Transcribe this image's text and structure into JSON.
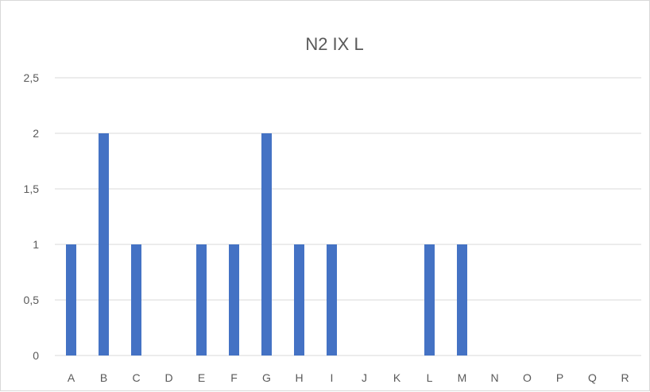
{
  "chart_data": {
    "type": "bar",
    "title": "N2 IX L",
    "xlabel": "",
    "ylabel": "",
    "categories": [
      "A",
      "B",
      "C",
      "D",
      "E",
      "F",
      "G",
      "H",
      "I",
      "J",
      "K",
      "L",
      "M",
      "N",
      "O",
      "P",
      "Q",
      "R"
    ],
    "values": [
      1,
      2,
      1,
      0,
      1,
      1,
      2,
      1,
      1,
      0,
      0,
      1,
      1,
      0,
      0,
      0,
      0,
      0
    ],
    "ylim": [
      0,
      2.5
    ],
    "yticks": [
      "0",
      "0,5",
      "1",
      "1,5",
      "2",
      "2,5"
    ],
    "grid": true,
    "legend": "none",
    "colors": {
      "bar": "#4472c4",
      "grid": "#d9d9d9",
      "text": "#595959"
    }
  }
}
